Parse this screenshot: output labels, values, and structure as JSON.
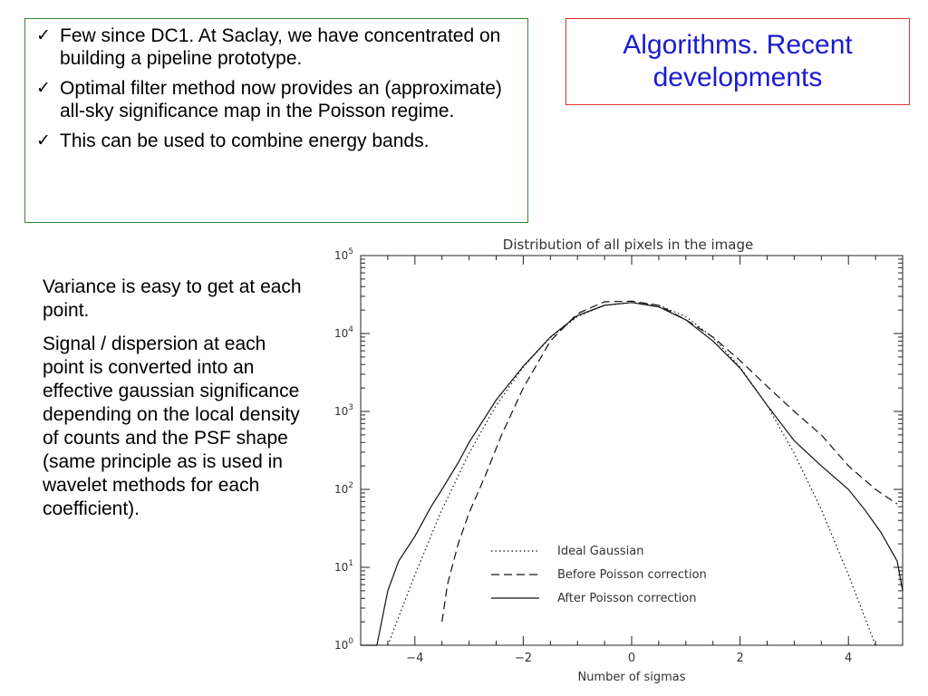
{
  "bullets": [
    "Few since DC1. At Saclay, we have concentrated on building a pipeline prototype.",
    "Optimal filter method now provides an (approximate) all-sky significance map in the Poisson regime.",
    "This can be used to combine energy bands."
  ],
  "slide_title": "Algorithms. Recent developments",
  "body_paragraphs": [
    "Variance is easy to get at each point.",
    "Signal / dispersion at each point is converted into an effective gaussian significance depending on the local density of counts and the PSF shape (same principle as is used in wavelet methods for each coefficient)."
  ],
  "chart_data": {
    "type": "line",
    "title": "Distribution of all pixels in the image",
    "xlabel": "Number of sigmas",
    "ylabel": "",
    "xlim": [
      -5,
      5
    ],
    "ylim": [
      1,
      100000
    ],
    "yscale": "log",
    "x_ticks": [
      -4,
      -2,
      0,
      2,
      4
    ],
    "y_ticks": [
      {
        "base": "10",
        "exp": "0",
        "value": 1
      },
      {
        "base": "10",
        "exp": "1",
        "value": 10
      },
      {
        "base": "10",
        "exp": "2",
        "value": 100
      },
      {
        "base": "10",
        "exp": "3",
        "value": 1000
      },
      {
        "base": "10",
        "exp": "4",
        "value": 10000
      },
      {
        "base": "10",
        "exp": "5",
        "value": 100000
      }
    ],
    "legend_position": "bottom-right",
    "series": [
      {
        "name": "Ideal Gaussian",
        "style": "dotted",
        "x": [
          -4.5,
          -4,
          -3.5,
          -3,
          -2.5,
          -2,
          -1.5,
          -1,
          -0.5,
          0,
          0.5,
          1,
          1.5,
          2,
          2.5,
          3,
          3.5,
          4,
          4.5
        ],
        "y": [
          1,
          8,
          55,
          290,
          1200,
          3700,
          8900,
          16500,
          23000,
          25000,
          23000,
          16500,
          8900,
          3700,
          1200,
          290,
          55,
          8,
          1
        ]
      },
      {
        "name": "Before Poisson correction",
        "style": "dashed",
        "x": [
          -3.5,
          -3.4,
          -3.2,
          -3.0,
          -2.7,
          -2.4,
          -2.0,
          -1.5,
          -1.0,
          -0.5,
          0,
          0.5,
          1.0,
          1.5,
          2.0,
          2.5,
          3.0,
          3.5,
          4.0,
          4.5,
          4.9
        ],
        "y": [
          2,
          6,
          20,
          50,
          150,
          500,
          2000,
          8000,
          18000,
          25500,
          26000,
          23000,
          15000,
          9000,
          4500,
          2100,
          1000,
          500,
          200,
          100,
          65
        ]
      },
      {
        "name": "After Poisson correction",
        "style": "solid",
        "x": [
          -5,
          -4.7,
          -4.5,
          -4.3,
          -4.0,
          -3.7,
          -3.5,
          -3.2,
          -3.0,
          -2.5,
          -2.0,
          -1.5,
          -1.0,
          -0.5,
          0,
          0.5,
          1.0,
          1.5,
          2.0,
          2.5,
          3.0,
          3.5,
          4.0,
          4.3,
          4.6,
          4.9,
          5.0
        ],
        "y": [
          1,
          1,
          5,
          12,
          25,
          60,
          100,
          220,
          400,
          1400,
          3800,
          9000,
          17000,
          23000,
          25000,
          22000,
          15000,
          8000,
          3600,
          1200,
          420,
          200,
          100,
          55,
          28,
          12,
          5
        ]
      }
    ]
  }
}
